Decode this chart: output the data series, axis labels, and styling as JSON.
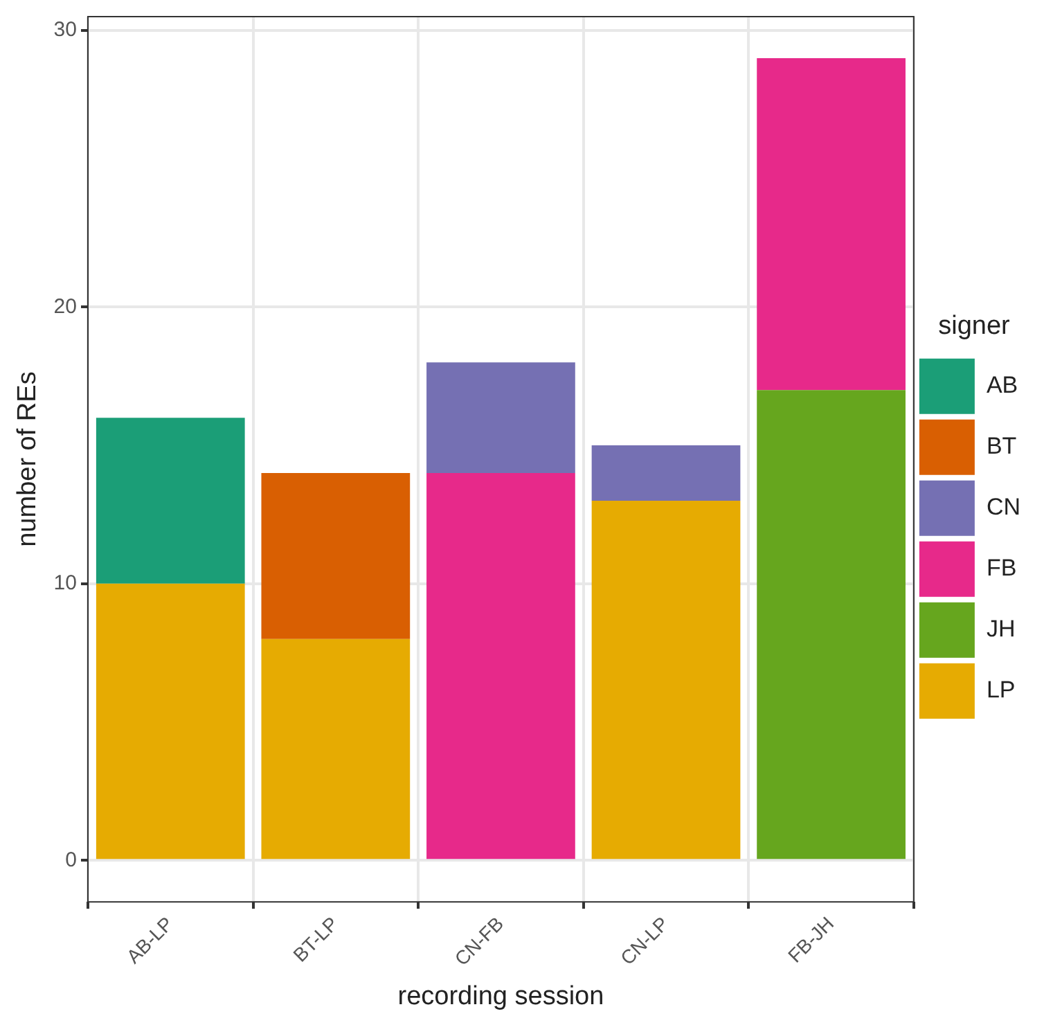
{
  "chart_data": {
    "type": "bar",
    "stacked": true,
    "xlabel": "recording session",
    "ylabel": "number of REs",
    "legend_title": "signer",
    "categories": [
      "AB-LP",
      "BT-LP",
      "CN-FB",
      "CN-LP",
      "FB-JH"
    ],
    "series": [
      {
        "name": "LP",
        "color": "#e6ab02",
        "values": [
          10,
          8,
          null,
          13,
          null
        ]
      },
      {
        "name": "JH",
        "color": "#66a61e",
        "values": [
          null,
          null,
          null,
          null,
          17
        ]
      },
      {
        "name": "FB",
        "color": "#e7298a",
        "values": [
          null,
          null,
          14,
          null,
          12
        ]
      },
      {
        "name": "CN",
        "color": "#7570b3",
        "values": [
          null,
          null,
          4,
          2,
          null
        ]
      },
      {
        "name": "BT",
        "color": "#d95f02",
        "values": [
          null,
          6,
          null,
          null,
          null
        ]
      },
      {
        "name": "AB",
        "color": "#1b9e77",
        "values": [
          6,
          null,
          null,
          null,
          null
        ]
      }
    ],
    "ylim": [
      -1.5,
      30.5
    ],
    "yticks": [
      0,
      10,
      20,
      30
    ],
    "grid": true,
    "legend": "right"
  }
}
